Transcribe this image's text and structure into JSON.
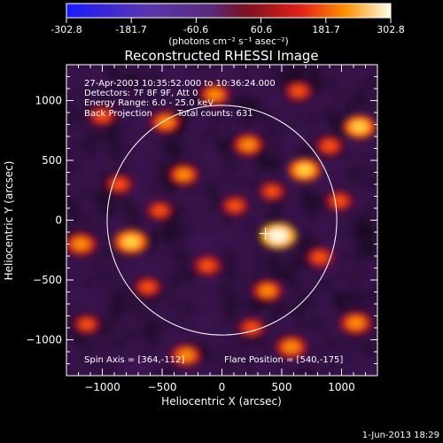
{
  "colorbar": {
    "tick_labels": [
      "-302.8",
      "-181.7",
      "-60.6",
      "60.6",
      "181.7",
      "302.8"
    ],
    "unit_label": "(photons cm⁻² s⁻¹ asec⁻²)",
    "range": [
      -302.8,
      302.8
    ]
  },
  "chart_data": {
    "type": "heatmap",
    "title": "Reconstructed RHESSI Image",
    "xlabel": "Heliocentric X (arcsec)",
    "ylabel": "Heliocentric Y (arcsec)",
    "xlim": [
      -1300,
      1300
    ],
    "ylim": [
      -1300,
      1300
    ],
    "x_ticks": [
      -1000,
      -500,
      0,
      500,
      1000
    ],
    "y_ticks": [
      -1000,
      -500,
      0,
      500,
      1000
    ],
    "x_tick_labels": [
      "−1000",
      "−500",
      "0",
      "500",
      "1000"
    ],
    "y_tick_labels": [
      "−1000",
      "−500",
      "0",
      "500",
      "1000"
    ],
    "solar_limb_radius_arcsec": 960,
    "solar_limb_center": [
      0,
      0
    ],
    "spin_axis": [
      364,
      -112
    ],
    "flare_position": [
      540,
      -175
    ],
    "hotspots": [
      {
        "x": 470,
        "y": -130,
        "intensity": 302.8
      },
      {
        "x": -760,
        "y": -180,
        "intensity": 260
      },
      {
        "x": 1150,
        "y": 780,
        "intensity": 230
      },
      {
        "x": 690,
        "y": 420,
        "intensity": 230
      },
      {
        "x": -1180,
        "y": -200,
        "intensity": 220
      },
      {
        "x": -470,
        "y": 820,
        "intensity": 200
      },
      {
        "x": 220,
        "y": 630,
        "intensity": 200
      },
      {
        "x": -320,
        "y": 380,
        "intensity": 190
      },
      {
        "x": 1120,
        "y": -860,
        "intensity": 220
      },
      {
        "x": 580,
        "y": -1060,
        "intensity": 210
      },
      {
        "x": -300,
        "y": -1130,
        "intensity": 200
      },
      {
        "x": 380,
        "y": -590,
        "intensity": 190
      },
      {
        "x": -120,
        "y": -380,
        "intensity": 180
      },
      {
        "x": 820,
        "y": -310,
        "intensity": 180
      },
      {
        "x": 110,
        "y": 120,
        "intensity": 160
      },
      {
        "x": -860,
        "y": 300,
        "intensity": 170
      },
      {
        "x": 980,
        "y": 160,
        "intensity": 170
      },
      {
        "x": -60,
        "y": 1050,
        "intensity": 190
      },
      {
        "x": -1000,
        "y": 870,
        "intensity": 170
      },
      {
        "x": -1130,
        "y": -870,
        "intensity": 150
      },
      {
        "x": 250,
        "y": -900,
        "intensity": 160
      },
      {
        "x": -620,
        "y": -560,
        "intensity": 160
      },
      {
        "x": 640,
        "y": 1080,
        "intensity": 170
      },
      {
        "x": 900,
        "y": 620,
        "intensity": 170
      },
      {
        "x": -520,
        "y": 80,
        "intensity": 150
      },
      {
        "x": 420,
        "y": 240,
        "intensity": 150
      }
    ]
  },
  "annotations": {
    "time_range": "27-Apr-2003 10:35:52.000 to 10:36:24.000",
    "detectors": "Detectors: 7F 8F 9F, Att 0",
    "energy_range": "Energy Range: 6.0 - 25.0 keV",
    "method": "Back Projection",
    "total_counts": "Total counts: 631",
    "spin_axis_label": "Spin Axis = [364,-112]",
    "flare_position_label": "Flare Position = [540,-175]"
  },
  "footer": {
    "timestamp": "1-Jun-2013 18:29"
  },
  "colors": {
    "background": "#000000",
    "foreground": "#ffffff",
    "colormap": [
      "#1010ff",
      "#4a2ab8",
      "#5a2e8c",
      "#3a1448",
      "#6a1010",
      "#c0101a",
      "#ff4a00",
      "#ffa500",
      "#fff3c0"
    ]
  }
}
